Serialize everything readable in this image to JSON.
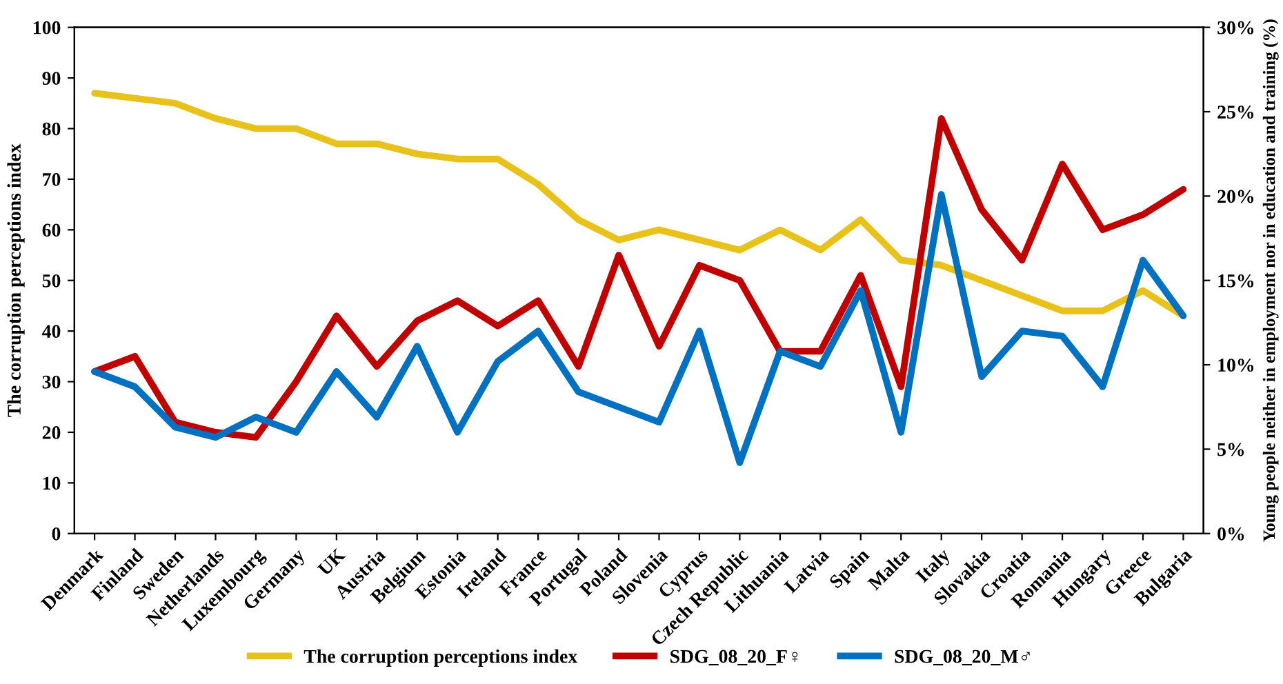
{
  "chart_data": {
    "type": "line",
    "ylabel": "The corruption perceptions index",
    "y2label": "Young people neither in employment nor in education and training (%)",
    "categories": [
      "Denmark",
      "Finland",
      "Sweden",
      "Netherlands",
      "Luxembourg",
      "Germany",
      "UK",
      "Austria",
      "Belgium",
      "Estonia",
      "Ireland",
      "France",
      "Portugal",
      "Poland",
      "Slovenia",
      "Cyprus",
      "Czech Republic",
      "Lithuania",
      "Latvia",
      "Spain",
      "Malta",
      "Italy",
      "Slovakia",
      "Croatia",
      "Romania",
      "Hungary",
      "Greece",
      "Bulgaria"
    ],
    "series": [
      {
        "name": "The corruption perceptions index",
        "color": "#e8c21a",
        "values": [
          87,
          86,
          85,
          82,
          80,
          80,
          77,
          77,
          75,
          74,
          74,
          69,
          62,
          58,
          60,
          58,
          56,
          60,
          56,
          62,
          54,
          53,
          50,
          47,
          44,
          44,
          48,
          43
        ]
      },
      {
        "name": "SDG_08_20_F♀",
        "color": "#c00000",
        "axis": "y2",
        "values": [
          9.6,
          10.5,
          6.6,
          6.0,
          5.7,
          9.0,
          12.9,
          9.9,
          12.6,
          13.8,
          12.3,
          13.8,
          9.9,
          16.5,
          11.1,
          15.9,
          15.0,
          10.8,
          10.8,
          15.3,
          8.7,
          24.6,
          19.2,
          16.2,
          21.9,
          18.0,
          18.9,
          20.4
        ]
      },
      {
        "name": "SDG_08_20_M♂",
        "color": "#0070c0",
        "axis": "y2",
        "values": [
          9.6,
          8.7,
          6.3,
          5.7,
          6.9,
          6.0,
          9.6,
          6.9,
          11.1,
          6.0,
          10.2,
          12.0,
          8.4,
          7.5,
          6.6,
          12.0,
          4.2,
          10.8,
          9.9,
          14.4,
          6.0,
          20.1,
          9.3,
          12.0,
          11.7,
          8.7,
          16.2,
          12.9
        ]
      }
    ],
    "ylim": [
      0,
      100
    ],
    "yticks": [
      0,
      10,
      20,
      30,
      40,
      50,
      60,
      70,
      80,
      90,
      100
    ],
    "y2lim": [
      0,
      30
    ],
    "y2ticks": [
      {
        "value": 0,
        "label": "0%"
      },
      {
        "value": 5,
        "label": "5%"
      },
      {
        "value": 10,
        "label": "10%"
      },
      {
        "value": 15,
        "label": "15%"
      },
      {
        "value": 20,
        "label": "20%"
      },
      {
        "value": 25,
        "label": "25%"
      },
      {
        "value": 30,
        "label": "30%"
      }
    ],
    "legend": "bottom",
    "grid": false,
    "marker": "none",
    "line_style": "solid"
  }
}
